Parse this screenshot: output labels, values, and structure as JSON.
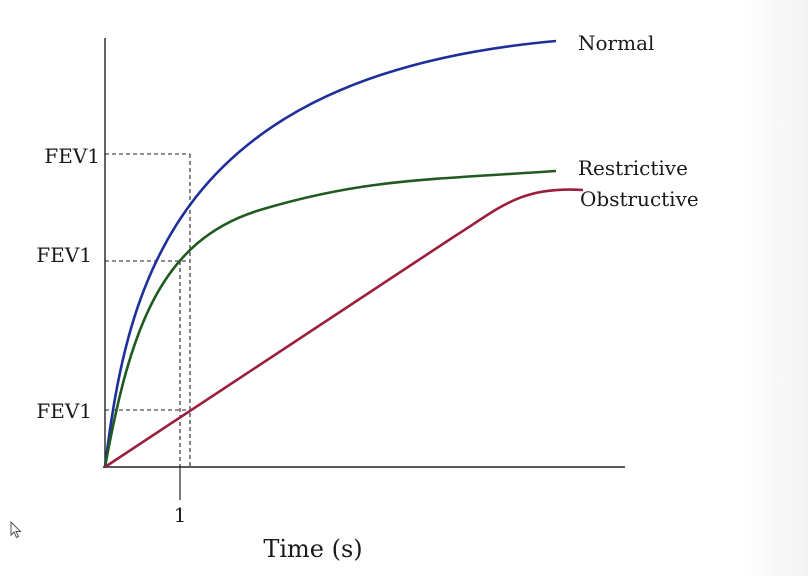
{
  "chart_data": {
    "type": "line",
    "xlabel": "Time (s)",
    "x_ticks": [
      "1"
    ],
    "fev1_labels": [
      "FEV1",
      "FEV1",
      "FEV1"
    ],
    "series": [
      {
        "name": "Normal",
        "color": "#1f2f9a",
        "fev1": 0.73,
        "plateau": 1.0,
        "shape": "exponential"
      },
      {
        "name": "Restrictive",
        "color": "#1f5a1f",
        "fev1": 0.48,
        "plateau": 0.7,
        "shape": "exponential"
      },
      {
        "name": "Obstructive",
        "color": "#9a1f3a",
        "fev1": 0.13,
        "plateau": 0.66,
        "shape": "slow-linear"
      }
    ]
  }
}
